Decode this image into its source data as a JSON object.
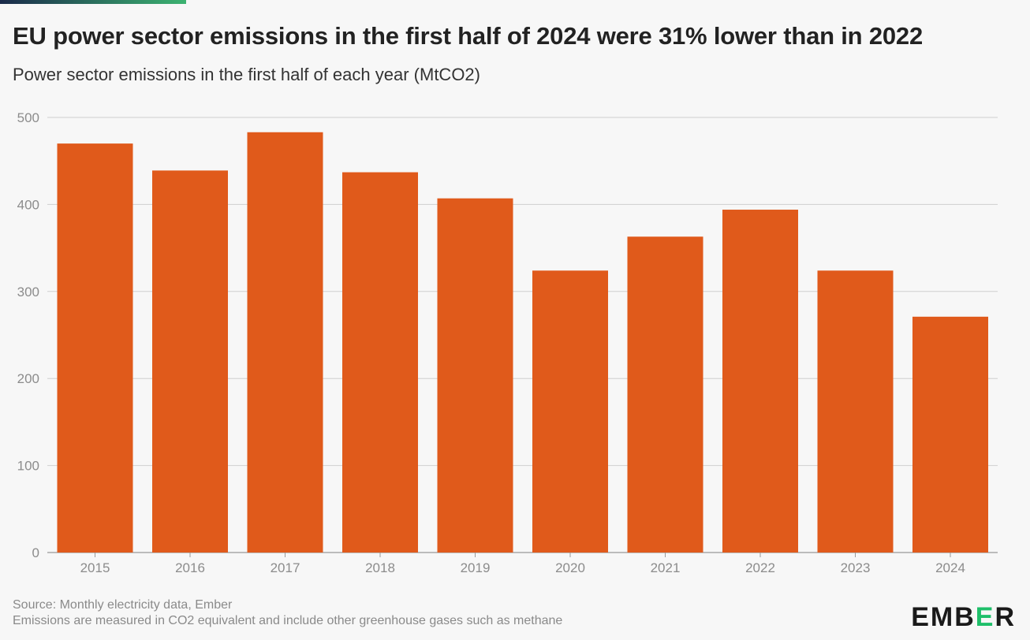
{
  "header": {
    "title": "EU power sector emissions in the first half of 2024 were 31% lower than in 2022",
    "subtitle": "Power sector emissions in the first half of each year (MtCO2)"
  },
  "footer": {
    "source": "Source: Monthly electricity data, Ember",
    "note": "Emissions are measured in CO2 equivalent and include other greenhouse gases such as methane"
  },
  "logo": {
    "prefix": "EMB",
    "highlight": "E",
    "suffix": "R"
  },
  "colors": {
    "bar": "#e05a1b",
    "grid": "#cfcfcf",
    "tick_text": "#8c8c8c",
    "axis": "#999999",
    "accent_bar_start": "#1a2a4a",
    "accent_bar_end": "#3cb371"
  },
  "chart_data": {
    "type": "bar",
    "title": "EU power sector emissions in the first half of 2024 were 31% lower than in 2022",
    "subtitle": "Power sector emissions in the first half of each year (MtCO2)",
    "xlabel": "",
    "ylabel": "",
    "categories": [
      "2015",
      "2016",
      "2017",
      "2018",
      "2019",
      "2020",
      "2021",
      "2022",
      "2023",
      "2024"
    ],
    "values": [
      470,
      439,
      483,
      437,
      407,
      324,
      363,
      394,
      324,
      271
    ],
    "ylim": [
      0,
      500
    ],
    "yticks": [
      0,
      100,
      200,
      300,
      400,
      500
    ],
    "grid": true,
    "legend": "none"
  }
}
